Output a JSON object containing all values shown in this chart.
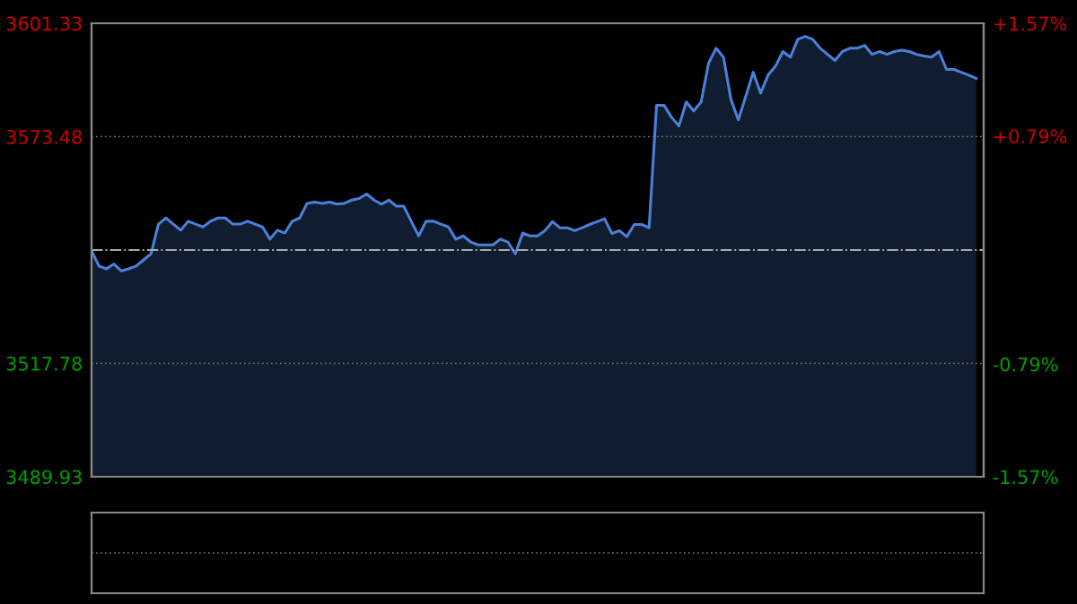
{
  "chart_data": {
    "type": "area",
    "categories": [
      null,
      null,
      null,
      null,
      null,
      null,
      null,
      null,
      null,
      null,
      null,
      null,
      null,
      null,
      null,
      null,
      null,
      null,
      null,
      null,
      null,
      null,
      null,
      null,
      null,
      null,
      null,
      null,
      null,
      null,
      null,
      null,
      null,
      null,
      null,
      null,
      null,
      null,
      null,
      null,
      null,
      null,
      null,
      null,
      null,
      null,
      null,
      null,
      null,
      null,
      null,
      null,
      null,
      null,
      null,
      null,
      null,
      null,
      null,
      null,
      null,
      null,
      null,
      null,
      null,
      null,
      null,
      null,
      null,
      null,
      null,
      null,
      null,
      null,
      null,
      null,
      null,
      null,
      null,
      null,
      null,
      null,
      null,
      null,
      null,
      null,
      null,
      null,
      null,
      null,
      null,
      null,
      null,
      null,
      null,
      null,
      null,
      null,
      null,
      null,
      null,
      null,
      null,
      null,
      null,
      null,
      null,
      null,
      null,
      null,
      null,
      null,
      null,
      null,
      null,
      null,
      null,
      null,
      null,
      null
    ],
    "series": [
      {
        "color": "#4a80d8",
        "values": [
          3545.4,
          3541.7,
          3541.0,
          3542.2,
          3540.5,
          3541.0,
          3541.7,
          3543.2,
          3544.7,
          3552.0,
          3553.5,
          3552.0,
          3550.5,
          3552.7,
          3552.0,
          3551.3,
          3552.7,
          3553.5,
          3553.5,
          3552.0,
          3552.0,
          3552.7,
          3552.0,
          3551.3,
          3548.3,
          3550.5,
          3549.8,
          3552.7,
          3553.5,
          3557.1,
          3557.4,
          3557.1,
          3557.4,
          3556.9,
          3557.1,
          3557.9,
          3558.3,
          3559.4,
          3557.9,
          3556.9,
          3557.9,
          3556.4,
          3556.4,
          3552.7,
          3549.1,
          3552.7,
          3552.7,
          3552.0,
          3551.3,
          3548.3,
          3549.1,
          3547.6,
          3546.9,
          3546.9,
          3546.9,
          3548.3,
          3547.6,
          3544.7,
          3549.8,
          3549.1,
          3549.1,
          3550.4,
          3552.6,
          3551.1,
          3551.1,
          3550.4,
          3551.1,
          3551.9,
          3552.6,
          3553.3,
          3549.7,
          3550.4,
          3548.9,
          3551.9,
          3551.9,
          3551.1,
          3581.2,
          3581.2,
          3578.3,
          3576.1,
          3582.0,
          3579.8,
          3582.0,
          3591.5,
          3595.2,
          3593.0,
          3582.7,
          3577.6,
          3583.4,
          3589.3,
          3584.2,
          3588.6,
          3590.8,
          3594.4,
          3593.0,
          3597.4,
          3598.1,
          3597.4,
          3595.2,
          3593.7,
          3592.2,
          3594.4,
          3595.2,
          3595.2,
          3595.9,
          3593.7,
          3594.4,
          3593.7,
          3594.4,
          3594.7,
          3594.4,
          3593.7,
          3593.3,
          3593.0,
          3594.4,
          3590.0,
          3590.0,
          3589.3,
          3588.6,
          3587.8
        ]
      }
    ],
    "ylim": [
      3489.93,
      3601.33
    ],
    "yticks": [
      3489.93,
      3517.78,
      3573.48,
      3601.33
    ],
    "y2lim": [
      -1.57,
      1.57
    ],
    "y2ticks": [
      {
        "value": -1.57,
        "label": "-1.57%"
      },
      {
        "value": -0.79,
        "label": "-0.79%"
      },
      {
        "value": 0.79,
        "label": "+0.79%"
      },
      {
        "value": 1.57,
        "label": "+1.57%"
      }
    ],
    "ref_lines": [
      {
        "axis": "y",
        "value": 3545.63,
        "color": "#aaaaaa",
        "line_style": "dashdot"
      }
    ],
    "grid": "y",
    "legend": false,
    "tick_labels": "y"
  }
}
